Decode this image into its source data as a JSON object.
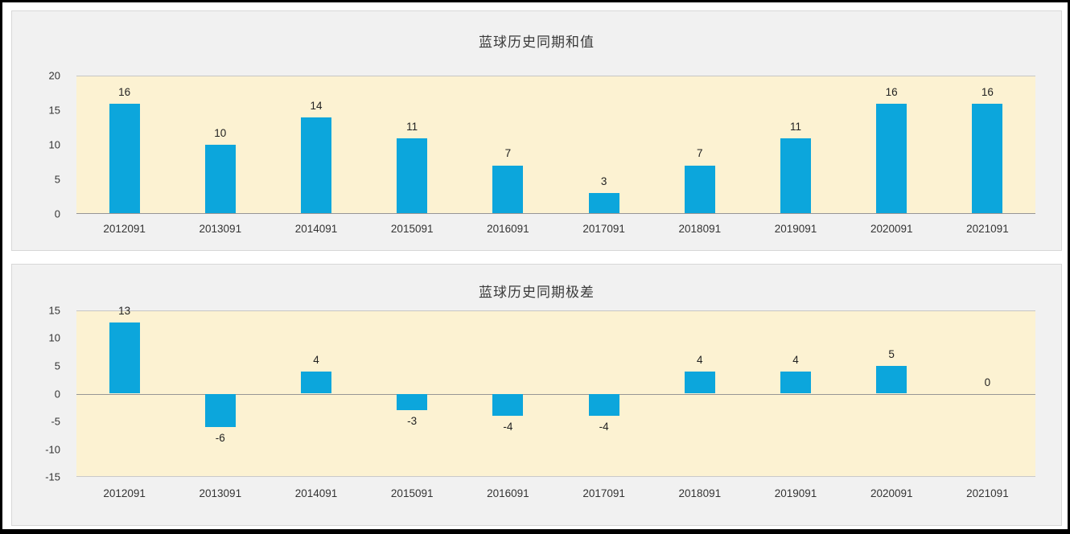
{
  "chart_data": [
    {
      "type": "bar",
      "title": "蓝球历史同期和值",
      "categories": [
        "2012091",
        "2013091",
        "2014091",
        "2015091",
        "2016091",
        "2017091",
        "2018091",
        "2019091",
        "2020091",
        "2021091"
      ],
      "values": [
        16,
        10,
        14,
        11,
        7,
        3,
        7,
        11,
        16,
        16
      ],
      "xlabel": "",
      "ylabel": "",
      "ylim": [
        0,
        20
      ],
      "yticks": [
        0,
        5,
        10,
        15,
        20
      ],
      "grid": false,
      "legend": "none",
      "data_labels": true,
      "bar_color": "#0ca6dc",
      "plot_bg": "#fcf2d2"
    },
    {
      "type": "bar",
      "title": "蓝球历史同期极差",
      "categories": [
        "2012091",
        "2013091",
        "2014091",
        "2015091",
        "2016091",
        "2017091",
        "2018091",
        "2019091",
        "2020091",
        "2021091"
      ],
      "values": [
        13,
        -6,
        4,
        -3,
        -4,
        -4,
        4,
        4,
        5,
        0
      ],
      "xlabel": "",
      "ylabel": "",
      "ylim": [
        -15,
        15
      ],
      "yticks": [
        -15,
        -10,
        -5,
        0,
        5,
        10,
        15
      ],
      "grid": false,
      "legend": "none",
      "data_labels": true,
      "bar_color": "#0ca6dc",
      "plot_bg": "#fcf2d2"
    }
  ]
}
